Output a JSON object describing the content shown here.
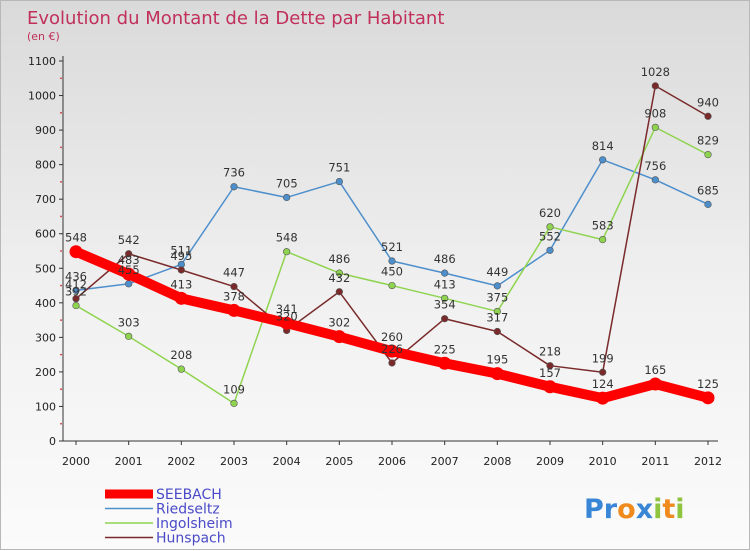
{
  "chart_data": {
    "type": "line",
    "title": "Evolution du Montant de la Dette par Habitant",
    "subtitle": "(en €)",
    "xlabel": "",
    "ylabel": "",
    "x": [
      "2000",
      "2001",
      "2002",
      "2003",
      "2004",
      "2005",
      "2006",
      "2007",
      "2008",
      "2009",
      "2010",
      "2011",
      "2012"
    ],
    "ylim": [
      0,
      1100
    ],
    "yticks": [
      "0",
      "100",
      "200",
      "300",
      "400",
      "500",
      "600",
      "700",
      "800",
      "900",
      "1000",
      "1100"
    ],
    "grid": false,
    "legend_position": "bottom-left",
    "series": [
      {
        "name": "SEEBACH",
        "color": "#ff0000",
        "values": [
          548,
          483,
          413,
          378,
          341,
          302,
          260,
          225,
          195,
          157,
          124,
          165,
          125
        ]
      },
      {
        "name": "Riedseltz",
        "color": "#4d8fcc",
        "values": [
          436,
          455,
          511,
          736,
          705,
          751,
          521,
          486,
          449,
          552,
          814,
          756,
          685
        ]
      },
      {
        "name": "Ingolsheim",
        "color": "#8fd44f",
        "values": [
          392,
          303,
          208,
          109,
          548,
          486,
          450,
          413,
          375,
          620,
          583,
          908,
          829
        ]
      },
      {
        "name": "Hunspach",
        "color": "#7a2a2a",
        "values": [
          412,
          542,
          495,
          447,
          320,
          432,
          226,
          354,
          317,
          218,
          199,
          1028,
          940
        ]
      }
    ]
  },
  "logo": {
    "letters": [
      "P",
      "r",
      "o",
      "x",
      "i",
      "t",
      "i"
    ],
    "colors": [
      "#3a86d6",
      "#3a86d6",
      "#f08a1c",
      "#3a86d6",
      "#8fc43f",
      "#f08a1c",
      "#8fc43f"
    ]
  }
}
